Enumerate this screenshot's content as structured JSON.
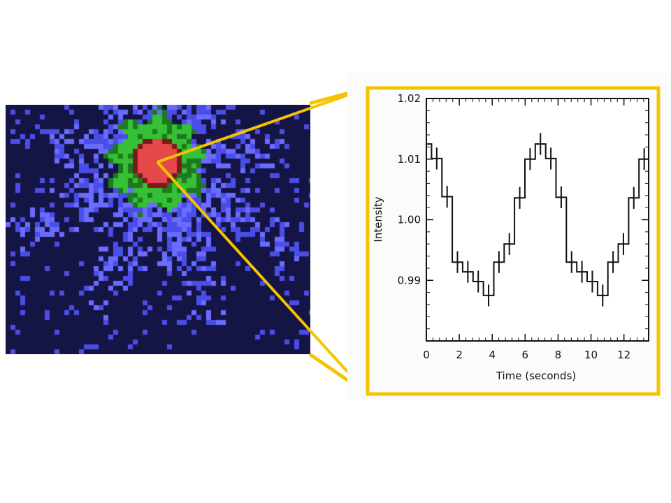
{
  "image": {
    "description_icon": "star-intensity-map",
    "colors": {
      "background": "#151545",
      "halo": "#4b4de8",
      "halo_light": "#6a6cff",
      "ring": "#35c035",
      "ring_dark": "#1e7a1e",
      "core": "#e44848",
      "core_edge": "#7a1a1a"
    }
  },
  "frame_color": "#f5c400",
  "chart_data": {
    "type": "line",
    "step": true,
    "title": "",
    "xlabel": "Time (seconds)",
    "ylabel": "Intensity",
    "xlim": [
      0,
      13.5
    ],
    "ylim": [
      0.98,
      1.02
    ],
    "xticks": [
      0,
      2,
      4,
      6,
      8,
      10,
      12
    ],
    "xtick_labels": [
      "0",
      "2",
      "4",
      "6",
      "8",
      "10",
      "12"
    ],
    "yticks": [
      0.99,
      1.0,
      1.01,
      1.02
    ],
    "ytick_labels": [
      "0.99",
      "1.00",
      "1.01",
      "1.02"
    ],
    "grid": false,
    "series": [
      {
        "x": [
          0.0,
          0.63,
          1.26,
          1.89,
          2.52,
          3.15,
          3.78,
          4.41,
          5.04,
          5.67,
          6.3,
          6.93,
          7.56,
          8.19,
          8.82,
          9.45,
          10.08,
          10.71,
          11.34,
          11.97,
          12.6,
          13.23
        ],
        "y": [
          1.0125,
          1.0101,
          1.0038,
          0.993,
          0.9914,
          0.9898,
          0.9875,
          0.993,
          0.996,
          1.0036,
          1.01,
          1.0125,
          1.0101,
          1.0037,
          0.993,
          0.9914,
          0.9898,
          0.9875,
          0.993,
          0.996,
          1.0036,
          1.01
        ],
        "err": [
          0.0018,
          0.0018,
          0.0018,
          0.0018,
          0.0018,
          0.0018,
          0.0018,
          0.0018,
          0.0018,
          0.0018,
          0.0018,
          0.0018,
          0.0018,
          0.0018,
          0.0018,
          0.0018,
          0.0018,
          0.0018,
          0.0018,
          0.0018,
          0.0018,
          0.0018
        ]
      }
    ]
  }
}
